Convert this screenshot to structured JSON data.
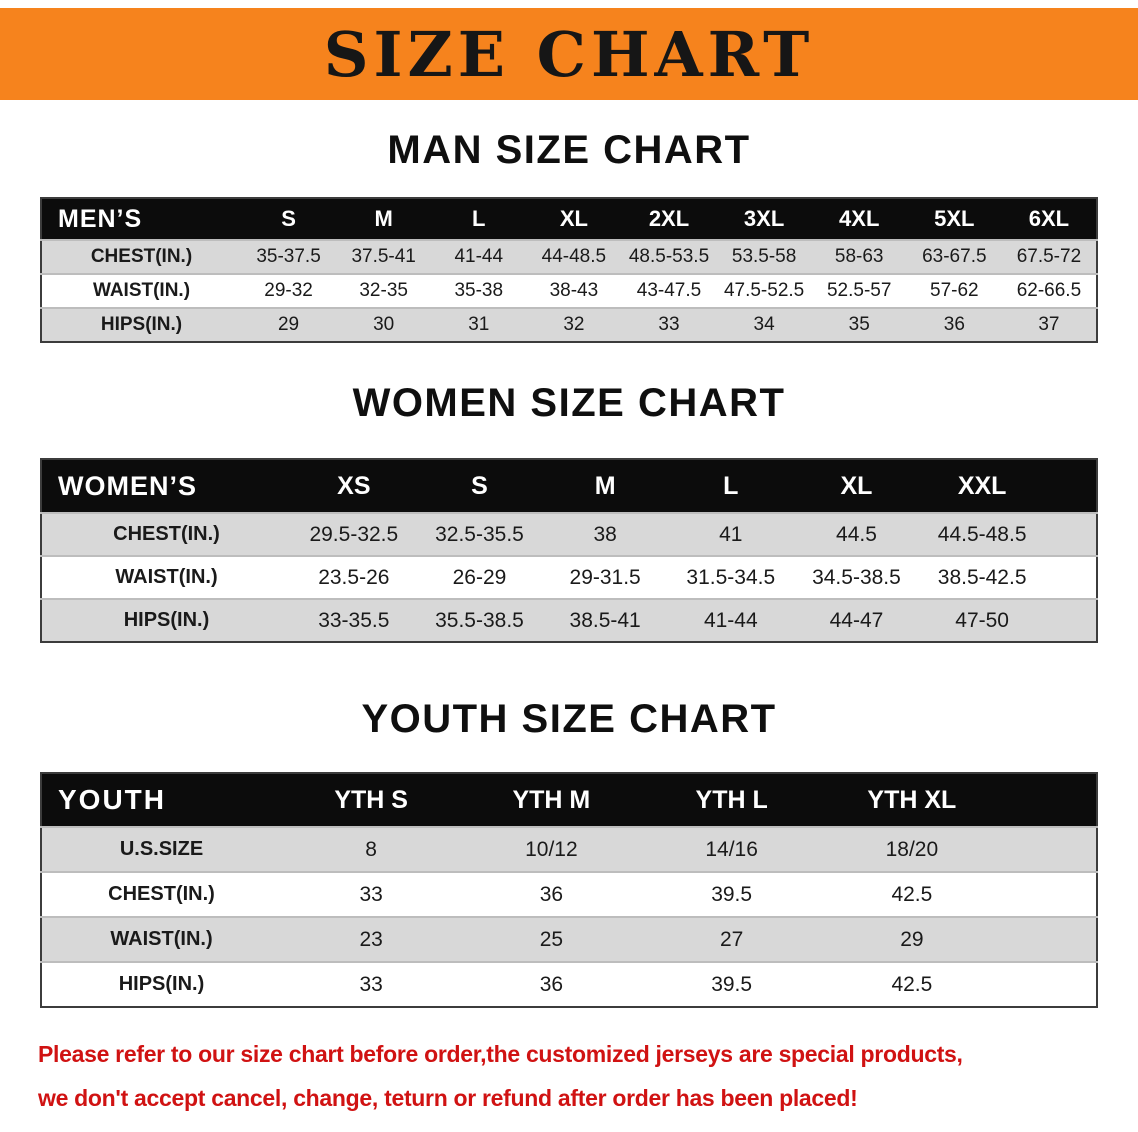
{
  "banner": {
    "title": "SIZE CHART",
    "bg_color": "#f6831d",
    "text_color": "#161616"
  },
  "sections": [
    {
      "heading": "MAN SIZE CHART",
      "table": {
        "title": "MEN’S",
        "columns": [
          "S",
          "M",
          "L",
          "XL",
          "2XL",
          "3XL",
          "4XL",
          "5XL",
          "6XL"
        ],
        "rows": [
          {
            "label": "CHEST(IN.)",
            "values": [
              "35-37.5",
              "37.5-41",
              "41-44",
              "44-48.5",
              "48.5-53.5",
              "53.5-58",
              "58-63",
              "63-67.5",
              "67.5-72"
            ]
          },
          {
            "label": "WAIST(IN.)",
            "values": [
              "29-32",
              "32-35",
              "35-38",
              "38-43",
              "43-47.5",
              "47.5-52.5",
              "52.5-57",
              "57-62",
              "62-66.5"
            ]
          },
          {
            "label": "HIPS(IN.)",
            "values": [
              "29",
              "30",
              "31",
              "32",
              "33",
              "34",
              "35",
              "36",
              "37"
            ]
          }
        ]
      }
    },
    {
      "heading": "WOMEN SIZE CHART",
      "table": {
        "title": "WOMEN’S",
        "columns": [
          "XS",
          "S",
          "M",
          "L",
          "XL",
          "XXL"
        ],
        "rows": [
          {
            "label": "CHEST(IN.)",
            "values": [
              "29.5-32.5",
              "32.5-35.5",
              "38",
              "41",
              "44.5",
              "44.5-48.5"
            ]
          },
          {
            "label": "WAIST(IN.)",
            "values": [
              "23.5-26",
              "26-29",
              "29-31.5",
              "31.5-34.5",
              "34.5-38.5",
              "38.5-42.5"
            ]
          },
          {
            "label": "HIPS(IN.)",
            "values": [
              "33-35.5",
              "35.5-38.5",
              "38.5-41",
              "41-44",
              "44-47",
              "47-50"
            ]
          }
        ]
      }
    },
    {
      "heading": "YOUTH SIZE CHART",
      "table": {
        "title": "YOUTH",
        "columns": [
          "YTH S",
          "YTH M",
          "YTH L",
          "YTH XL"
        ],
        "rows": [
          {
            "label": "U.S.SIZE",
            "values": [
              "8",
              "10/12",
              "14/16",
              "18/20"
            ]
          },
          {
            "label": "CHEST(IN.)",
            "values": [
              "33",
              "36",
              "39.5",
              "42.5"
            ]
          },
          {
            "label": "WAIST(IN.)",
            "values": [
              "23",
              "25",
              "27",
              "29"
            ]
          },
          {
            "label": "HIPS(IN.)",
            "values": [
              "33",
              "36",
              "39.5",
              "42.5"
            ]
          }
        ]
      }
    }
  ],
  "note": {
    "line1": "Please refer to our size chart before order,the customized jerseys are special products,",
    "line2": "we don't accept cancel, change, teturn or refund after order has been placed!",
    "text_color": "#d01212"
  },
  "colors": {
    "table_header_bg": "#0c0c0c",
    "table_header_text": "#ffffff",
    "row_shaded_bg": "#d8d8d8",
    "row_plain_bg": "#ffffff"
  }
}
